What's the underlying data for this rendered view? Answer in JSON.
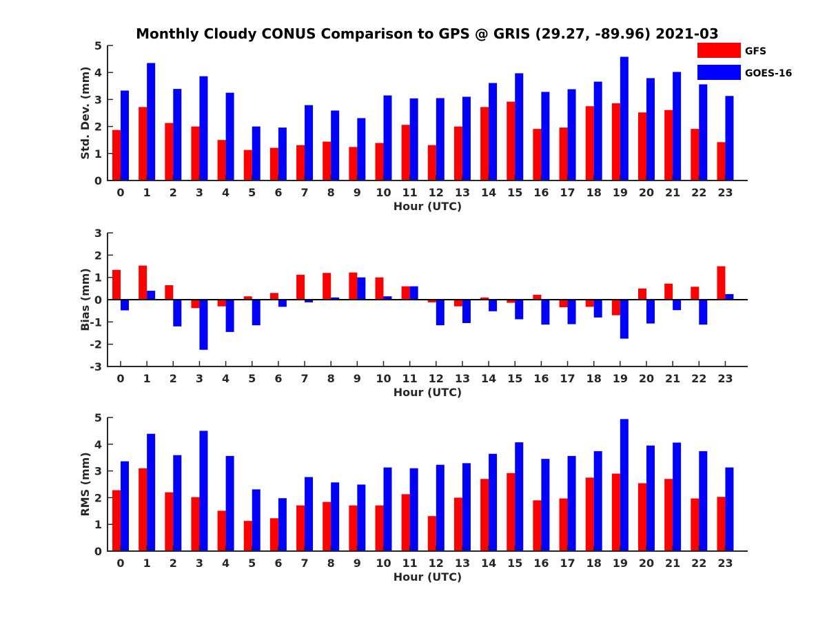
{
  "title": "Monthly Cloudy CONUS Comparison to GPS @ GRIS (29.27, -89.96) 2021-03",
  "legend": [
    {
      "name": "GFS",
      "color": "#ff0000"
    },
    {
      "name": "GOES-16",
      "color": "#0000ff"
    }
  ],
  "chart_data": [
    {
      "type": "bar",
      "panel": "std-dev",
      "xlabel": "Hour (UTC)",
      "ylabel": "Std. Dev. (mm)",
      "ylim": [
        0,
        5
      ],
      "yticks": [
        0,
        1,
        2,
        3,
        4,
        5
      ],
      "categories": [
        "0",
        "1",
        "2",
        "3",
        "4",
        "5",
        "6",
        "7",
        "8",
        "9",
        "10",
        "11",
        "12",
        "13",
        "14",
        "15",
        "16",
        "17",
        "18",
        "19",
        "20",
        "21",
        "22",
        "23"
      ],
      "series": [
        {
          "name": "GFS",
          "values": [
            1.87,
            2.72,
            2.13,
            2.0,
            1.5,
            1.13,
            1.21,
            1.31,
            1.44,
            1.24,
            1.39,
            2.06,
            1.31,
            2.0,
            2.72,
            2.92,
            1.91,
            1.96,
            2.75,
            2.86,
            2.52,
            2.61,
            1.91,
            1.42
          ]
        },
        {
          "name": "GOES-16",
          "values": [
            3.33,
            4.35,
            3.39,
            3.86,
            3.25,
            2.0,
            1.96,
            2.79,
            2.59,
            2.31,
            3.15,
            3.04,
            3.05,
            3.1,
            3.61,
            3.97,
            3.28,
            3.38,
            3.66,
            4.58,
            3.79,
            4.02,
            3.56,
            3.13
          ]
        }
      ]
    },
    {
      "type": "bar",
      "panel": "bias",
      "xlabel": "Hour (UTC)",
      "ylabel": "Bias (mm)",
      "ylim": [
        -3,
        3
      ],
      "yticks": [
        -3,
        -2,
        -1,
        0,
        1,
        2,
        3
      ],
      "categories": [
        "0",
        "1",
        "2",
        "3",
        "4",
        "5",
        "6",
        "7",
        "8",
        "9",
        "10",
        "11",
        "12",
        "13",
        "14",
        "15",
        "16",
        "17",
        "18",
        "19",
        "20",
        "21",
        "22",
        "23"
      ],
      "series": [
        {
          "name": "GFS",
          "values": [
            1.34,
            1.53,
            0.65,
            -0.38,
            -0.3,
            0.15,
            0.3,
            1.12,
            1.2,
            1.22,
            1.0,
            0.6,
            -0.12,
            -0.3,
            0.1,
            -0.14,
            0.22,
            -0.34,
            -0.32,
            -0.7,
            0.5,
            0.72,
            0.58,
            1.5
          ]
        },
        {
          "name": "GOES-16",
          "values": [
            -0.48,
            0.4,
            -1.2,
            -2.25,
            -1.45,
            -1.15,
            -0.32,
            -0.12,
            0.1,
            1.0,
            0.15,
            0.6,
            -1.15,
            -1.05,
            -0.52,
            -0.88,
            -1.12,
            -1.1,
            -0.8,
            -1.75,
            -1.07,
            -0.47,
            -1.12,
            0.25
          ]
        }
      ]
    },
    {
      "type": "bar",
      "panel": "rms",
      "xlabel": "Hour (UTC)",
      "ylabel": "RMS (mm)",
      "ylim": [
        0,
        5
      ],
      "yticks": [
        0,
        1,
        2,
        3,
        4,
        5
      ],
      "categories": [
        "0",
        "1",
        "2",
        "3",
        "4",
        "5",
        "6",
        "7",
        "8",
        "9",
        "10",
        "11",
        "12",
        "13",
        "14",
        "15",
        "16",
        "17",
        "18",
        "19",
        "20",
        "21",
        "22",
        "23"
      ],
      "series": [
        {
          "name": "GFS",
          "values": [
            2.28,
            3.1,
            2.2,
            2.02,
            1.51,
            1.13,
            1.23,
            1.71,
            1.84,
            1.71,
            1.71,
            2.13,
            1.31,
            2.0,
            2.7,
            2.92,
            1.9,
            1.97,
            2.75,
            2.9,
            2.54,
            2.7,
            1.97,
            2.03
          ]
        },
        {
          "name": "GOES-16",
          "values": [
            3.36,
            4.39,
            3.59,
            4.5,
            3.56,
            2.31,
            1.98,
            2.77,
            2.57,
            2.49,
            3.13,
            3.1,
            3.23,
            3.29,
            3.64,
            4.07,
            3.45,
            3.56,
            3.74,
            4.94,
            3.95,
            4.06,
            3.74,
            3.13
          ]
        }
      ]
    }
  ]
}
